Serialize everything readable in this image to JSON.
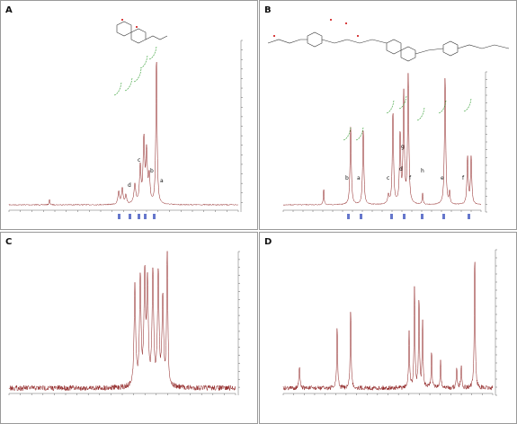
{
  "panels": [
    {
      "label": "A",
      "peaks": [
        "d",
        "c",
        "b",
        "a"
      ]
    },
    {
      "label": "B",
      "peaks": [
        "b",
        "a",
        "c",
        "g",
        "d",
        "f",
        "h",
        "e",
        "f"
      ]
    },
    {
      "label": "C",
      "peaks": []
    },
    {
      "label": "D",
      "peaks": []
    }
  ]
}
